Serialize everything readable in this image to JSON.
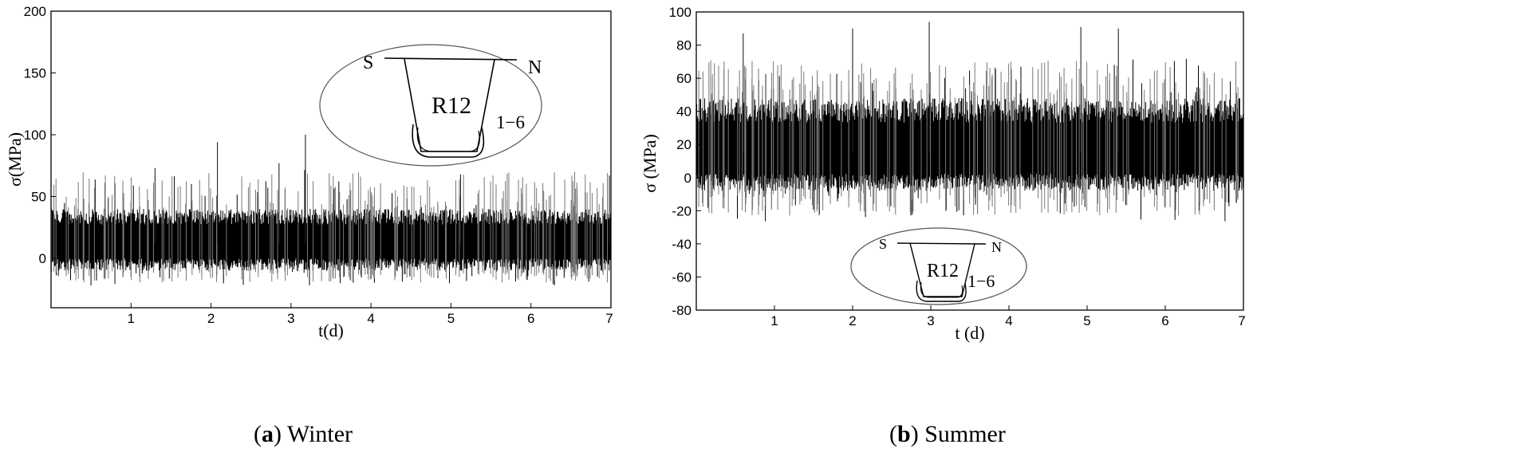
{
  "chart_data": [
    {
      "type": "line",
      "panel_letter": "a",
      "caption": "Winter",
      "xlabel": "t(d)",
      "ylabel": "σ(MPa)",
      "xlim": [
        0,
        7
      ],
      "ylim": [
        -40,
        200
      ],
      "xticks": [
        1,
        2,
        3,
        4,
        5,
        6,
        7
      ],
      "yticks": [
        0,
        50,
        100,
        150,
        200
      ],
      "grid": false,
      "series_color": "#000000",
      "signal": {
        "mean": 12,
        "band_low": -10,
        "band_high": 40,
        "min": -22,
        "max": 100,
        "peaks": [
          {
            "x": 2.08,
            "y": 94
          },
          {
            "x": 3.18,
            "y": 100
          },
          {
            "x": 2.85,
            "y": 77
          },
          {
            "x": 1.3,
            "y": 73
          },
          {
            "x": 5.12,
            "y": 68
          },
          {
            "x": 6.98,
            "y": 67
          }
        ]
      },
      "inset": {
        "left": "S",
        "right": "N",
        "label": "R12",
        "sensor": "1−6",
        "position": "top-right"
      }
    },
    {
      "type": "line",
      "panel_letter": "b",
      "caption": "Summer",
      "xlabel": "t (d)",
      "ylabel": "σ (MPa)",
      "xlim": [
        0,
        7
      ],
      "ylim": [
        -80,
        100
      ],
      "xticks": [
        1,
        2,
        3,
        4,
        5,
        6,
        7
      ],
      "yticks": [
        -80,
        -60,
        -40,
        -20,
        0,
        20,
        40,
        60,
        80,
        100
      ],
      "grid": false,
      "series_color": "#000000",
      "signal": {
        "mean": 15,
        "band_low": -8,
        "band_high": 48,
        "min": -27,
        "max": 94,
        "peaks": [
          {
            "x": 2.98,
            "y": 94
          },
          {
            "x": 4.92,
            "y": 91
          },
          {
            "x": 2.0,
            "y": 90
          },
          {
            "x": 0.6,
            "y": 87
          },
          {
            "x": 5.4,
            "y": 90
          }
        ]
      },
      "inset": {
        "left": "S",
        "right": "N",
        "label": "R12",
        "sensor": "1−6",
        "position": "bottom-center"
      }
    }
  ]
}
